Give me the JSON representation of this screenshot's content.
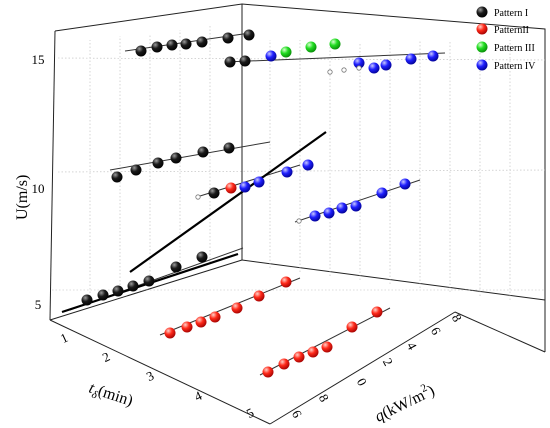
{
  "chart_data": {
    "type": "scatter3d",
    "title": "",
    "axes": {
      "y": {
        "label": "U(m/s)",
        "ticks": [
          "5",
          "10",
          "15"
        ]
      },
      "t": {
        "label_main": "t",
        "label_sub": "δ",
        "label_unit": "(min)",
        "ticks": [
          "1",
          "2",
          "3",
          "4",
          "5"
        ]
      },
      "q": {
        "label_main": "q",
        "label_unit": "(kW/m",
        "label_sup": "2",
        "label_close": ")",
        "ticks": [
          "6",
          "8",
          "0",
          "2",
          "4",
          "6",
          "8"
        ]
      }
    },
    "legend": {
      "placement": "top-right",
      "entries": [
        {
          "label": "Pattern I",
          "color": "#000000"
        },
        {
          "label": "PatternII",
          "color": "#e8201a"
        },
        {
          "label": "Pattern III",
          "color": "#18c418"
        },
        {
          "label": "Pattern IV",
          "color": "#1414e0"
        }
      ]
    },
    "colors": {
      "I": "#000000",
      "II": "#e8201a",
      "III": "#18c418",
      "IV": "#1414e0"
    },
    "series": [
      {
        "name": "Pattern I",
        "points": [
          [
            87,
            300
          ],
          [
            103,
            295
          ],
          [
            118,
            291
          ],
          [
            133,
            286
          ],
          [
            149,
            281
          ],
          [
            176,
            267
          ],
          [
            202,
            257
          ],
          [
            117,
            177
          ],
          [
            136,
            170
          ],
          [
            158,
            163
          ],
          [
            176,
            158
          ],
          [
            203,
            152
          ],
          [
            229,
            148
          ],
          [
            214,
            193
          ],
          [
            141,
            51
          ],
          [
            157,
            47
          ],
          [
            172,
            45
          ],
          [
            186,
            44
          ],
          [
            202,
            42
          ],
          [
            228,
            38
          ],
          [
            249,
            35
          ],
          [
            230,
            62
          ],
          [
            245,
            61
          ]
        ]
      },
      {
        "name": "PatternII",
        "points": [
          [
            170,
            333
          ],
          [
            187,
            327
          ],
          [
            201,
            322
          ],
          [
            215,
            317
          ],
          [
            237,
            308
          ],
          [
            259,
            296
          ],
          [
            286,
            282
          ],
          [
            268,
            372
          ],
          [
            284,
            364
          ],
          [
            299,
            357
          ],
          [
            313,
            352
          ],
          [
            327,
            347
          ],
          [
            352,
            327
          ],
          [
            377,
            312
          ],
          [
            231,
            188
          ]
        ]
      },
      {
        "name": "Pattern III",
        "points": [
          [
            286,
            52
          ],
          [
            311,
            47
          ],
          [
            335,
            44
          ]
        ]
      },
      {
        "name": "Pattern IV",
        "points": [
          [
            271,
            56
          ],
          [
            359,
            63
          ],
          [
            374,
            68
          ],
          [
            386,
            65
          ],
          [
            411,
            59
          ],
          [
            433,
            56
          ],
          [
            259,
            182
          ],
          [
            287,
            172
          ],
          [
            308,
            165
          ],
          [
            315,
            216
          ],
          [
            329,
            213
          ],
          [
            342,
            208
          ],
          [
            356,
            206
          ],
          [
            382,
            193
          ],
          [
            405,
            184
          ],
          [
            245,
            187
          ]
        ]
      }
    ],
    "hollow_points": [
      [
        330,
        72
      ],
      [
        344,
        70
      ],
      [
        359,
        68
      ],
      [
        198,
        197
      ],
      [
        299,
        221
      ]
    ]
  }
}
